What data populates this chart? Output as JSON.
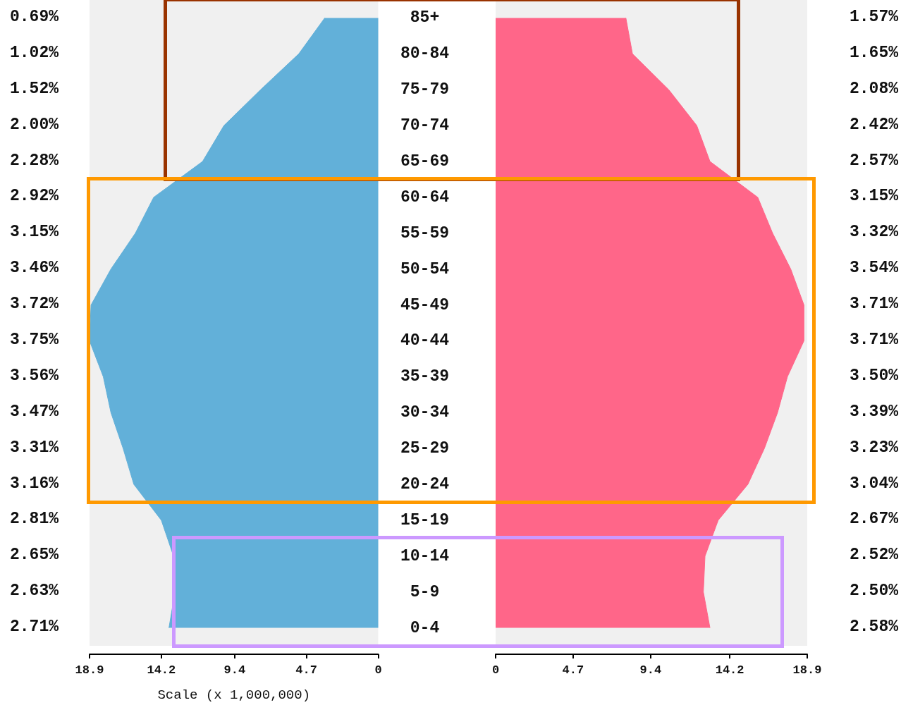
{
  "chart_data": [
    {
      "type": "area",
      "orientation": "horizontal",
      "color": "#62b0d9",
      "categories": [
        "85+",
        "80-84",
        "75-79",
        "70-74",
        "65-69",
        "60-64",
        "55-59",
        "50-54",
        "45-49",
        "40-44",
        "35-39",
        "30-34",
        "25-29",
        "20-24",
        "15-19",
        "10-14",
        "5-9",
        "0-4"
      ],
      "values": [
        3.5,
        5.2,
        7.7,
        10.1,
        11.5,
        14.7,
        15.9,
        17.5,
        18.8,
        18.9,
        18.0,
        17.5,
        16.7,
        16.0,
        14.2,
        13.4,
        13.3,
        13.7
      ],
      "annotations": [
        "0.69%",
        "1.02%",
        "1.52%",
        "2.00%",
        "2.28%",
        "2.92%",
        "3.15%",
        "3.46%",
        "3.72%",
        "3.75%",
        "3.56%",
        "3.47%",
        "3.31%",
        "3.16%",
        "2.81%",
        "2.65%",
        "2.63%",
        "2.71%"
      ],
      "xlim": [
        18.9,
        0
      ],
      "xticks": [
        18.9,
        14.2,
        9.4,
        4.7,
        0
      ],
      "xlabel": "Scale (x 1,000,000)"
    },
    {
      "type": "area",
      "orientation": "horizontal",
      "color": "#ff6689",
      "tick_labels": "x",
      "values": [
        7.9,
        8.3,
        10.5,
        12.2,
        13.0,
        15.9,
        16.8,
        17.9,
        18.7,
        18.7,
        17.7,
        17.1,
        16.3,
        15.3,
        13.5,
        12.7,
        12.6,
        13.0
      ],
      "annotations": [
        "1.57%",
        "1.65%",
        "2.08%",
        "2.42%",
        "2.57%",
        "3.15%",
        "3.32%",
        "3.54%",
        "3.71%",
        "3.71%",
        "3.50%",
        "3.39%",
        "3.23%",
        "3.04%",
        "2.67%",
        "2.52%",
        "2.50%",
        "2.58%"
      ],
      "xlim": [
        0,
        18.9
      ],
      "xticks": [
        0,
        4.7,
        9.4,
        14.2,
        18.9
      ]
    }
  ]
}
